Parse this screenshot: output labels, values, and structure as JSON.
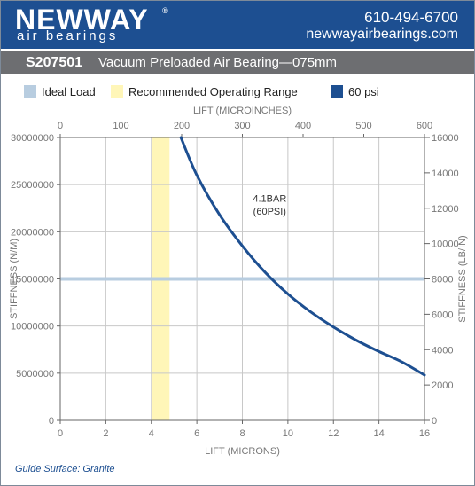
{
  "header": {
    "brand": "NEWWAY",
    "brand_sub": "air bearings",
    "registered": "®",
    "phone": "610-494-6700",
    "website": "newwayairbearings.com",
    "background_color": "#1d4f91"
  },
  "title_bar": {
    "model": "S207501",
    "description": "Vacuum Preloaded Air Bearing—075mm",
    "background_color": "#6d6e71"
  },
  "legend": [
    {
      "label": "Ideal Load",
      "color": "#b8cde0"
    },
    {
      "label": "Recommended Operating Range",
      "color": "#fff6b8"
    },
    {
      "label": "60 psi",
      "color": "#1d4f91"
    }
  ],
  "footnote": "Guide Surface: Granite",
  "chart_data": {
    "type": "line",
    "xlabel": "LIFT (MICRONS)",
    "x2label": "LIFT (MICROINCHES)",
    "ylabel": "STIFFNESS (N/M)",
    "y2label": "STIFFNESS (LB/IN)",
    "xlim": [
      0,
      16
    ],
    "ylim": [
      0,
      30000000
    ],
    "x2lim": [
      0,
      600
    ],
    "y2lim": [
      0,
      16000
    ],
    "x_ticks": [
      "0",
      "2",
      "4",
      "6",
      "8",
      "10",
      "12",
      "14",
      "16"
    ],
    "y_ticks": [
      "0",
      "5000000",
      "10000000",
      "15000000",
      "20000000",
      "25000000",
      "30000000"
    ],
    "x2_ticks": [
      "0",
      "100",
      "200",
      "300",
      "400",
      "500",
      "600"
    ],
    "y2_ticks": [
      "0",
      "2000",
      "4000",
      "6000",
      "8000",
      "10000",
      "12000",
      "14000",
      "16000"
    ],
    "grid": true,
    "ideal_load": 15000000,
    "recommended_range": [
      4,
      4.8
    ],
    "series": [
      {
        "name": "60 psi",
        "color": "#1d4f91",
        "x": [
          5.3,
          6,
          7,
          8,
          9,
          10,
          11,
          12,
          13,
          14,
          15,
          16
        ],
        "y": [
          30000000,
          26000000,
          21800000,
          18500000,
          15700000,
          13400000,
          11500000,
          9900000,
          8500000,
          7300000,
          6200000,
          4800000
        ]
      }
    ],
    "annotations": [
      {
        "text": "4.1BAR",
        "x": 9.2,
        "y": 23200000
      },
      {
        "text": "(60PSI)",
        "x": 9.2,
        "y": 21800000
      }
    ]
  }
}
